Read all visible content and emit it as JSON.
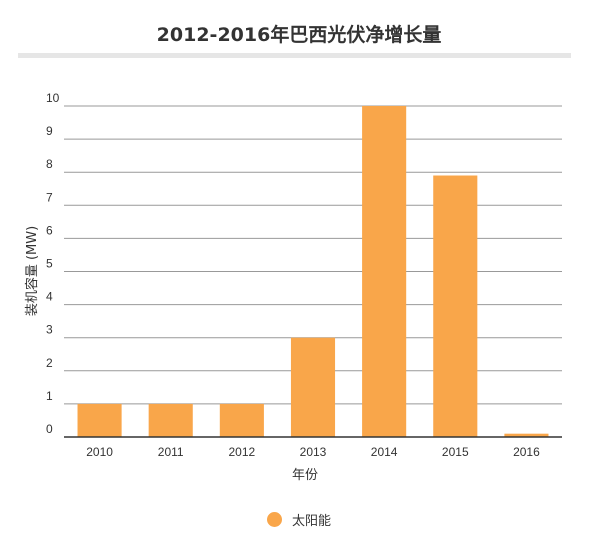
{
  "chart_data": {
    "type": "bar",
    "title": "2012-2016年巴西光伏净增长量",
    "xlabel": "年份",
    "ylabel": "装机容量 (MW)",
    "categories": [
      "2010",
      "2011",
      "2012",
      "2013",
      "2014",
      "2015",
      "2016"
    ],
    "series": [
      {
        "name": "太阳能",
        "values": [
          1,
          1,
          1,
          3,
          10,
          7.9,
          0.1
        ],
        "color": "#f9a64a"
      }
    ],
    "ylim": [
      0,
      10
    ],
    "yticks": [
      "0",
      "1",
      "2",
      "3",
      "4",
      "5",
      "6",
      "7",
      "8",
      "9",
      "10"
    ],
    "grid": true,
    "legend_position": "bottom"
  }
}
